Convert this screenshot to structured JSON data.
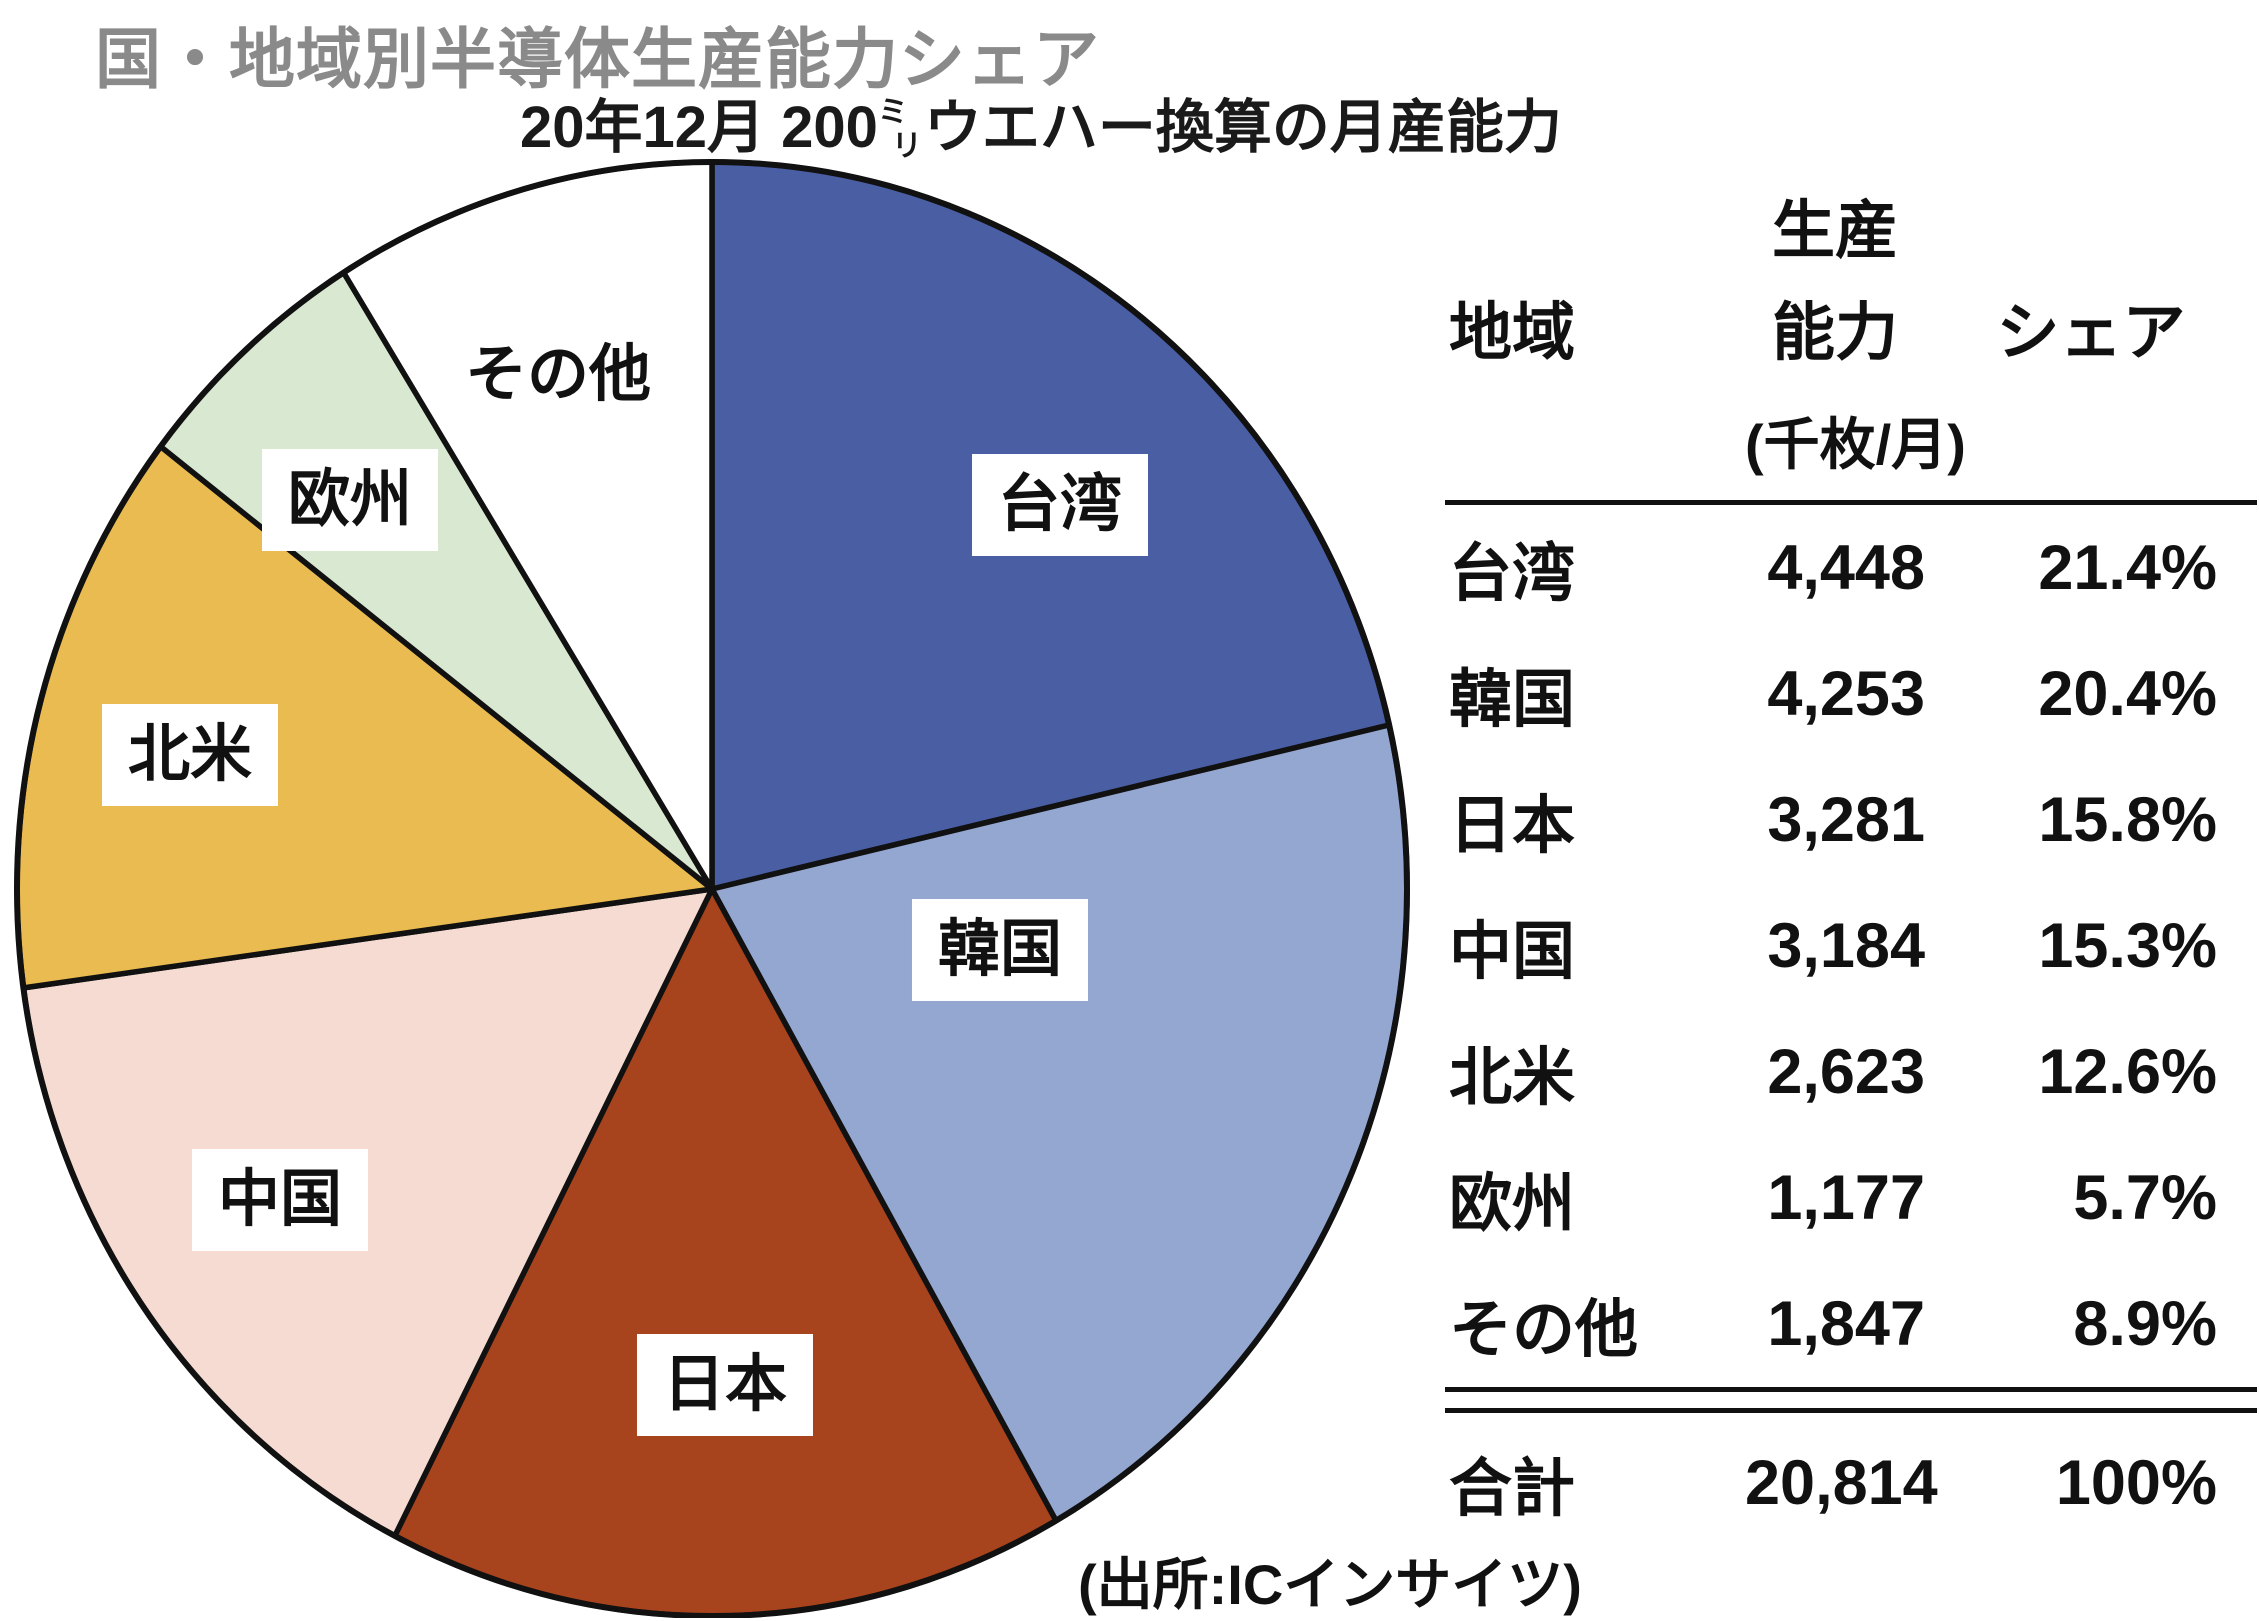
{
  "page": {
    "background": "#ffffff",
    "text_color": "#1a1a1a",
    "title_color": "#8a8a8a",
    "outline_color": "#111111"
  },
  "title": "国・地域別半導体生産能力シェア",
  "subtitle": {
    "prefix": "20年12月 200",
    "unit_small_top": "ミ",
    "unit_small_bottom": "リ",
    "suffix": "ウエハー換算の月産能力",
    "full": "20年12月 200ミリウエハー換算の月産能力"
  },
  "table": {
    "col_region": "地域",
    "col_capacity_line1": "生産",
    "col_capacity_line2": "能力",
    "col_capacity_unit": "(千枚/月)",
    "col_share": "シェア",
    "total_row": {
      "region": "合計",
      "capacity": "20,814",
      "share": "100%"
    }
  },
  "source": "(出所:ICインサイツ)",
  "chart_data": {
    "type": "pie",
    "title": "国・地域別半導体生産能力シェア",
    "subtitle": "20年12月 200ミリウエハー換算の月産能力",
    "unit": "千枚/月",
    "start_angle_deg": 0,
    "direction": "clockwise",
    "legend_position": "labels-on-slices",
    "total_capacity": "20,814",
    "slices": [
      {
        "label": "台湾",
        "capacity": "4,448",
        "share": "21.4%",
        "share_pct": 21.4,
        "color": "#4a5ea3"
      },
      {
        "label": "韓国",
        "capacity": "4,253",
        "share": "20.4%",
        "share_pct": 20.4,
        "color": "#93a7d1"
      },
      {
        "label": "日本",
        "capacity": "3,281",
        "share": "15.8%",
        "share_pct": 15.8,
        "color": "#a7431d"
      },
      {
        "label": "中国",
        "capacity": "3,184",
        "share": "15.3%",
        "share_pct": 15.3,
        "color": "#f6dbd2"
      },
      {
        "label": "北米",
        "capacity": "2,623",
        "share": "12.6%",
        "share_pct": 12.6,
        "color": "#e9bb51"
      },
      {
        "label": "欧州",
        "capacity": "1,177",
        "share": "5.7%",
        "share_pct": 5.7,
        "color": "#d9e8d0"
      },
      {
        "label": "その他",
        "capacity": "1,847",
        "share": "8.9%",
        "share_pct": 8.9,
        "color": "#ffffff"
      }
    ]
  }
}
